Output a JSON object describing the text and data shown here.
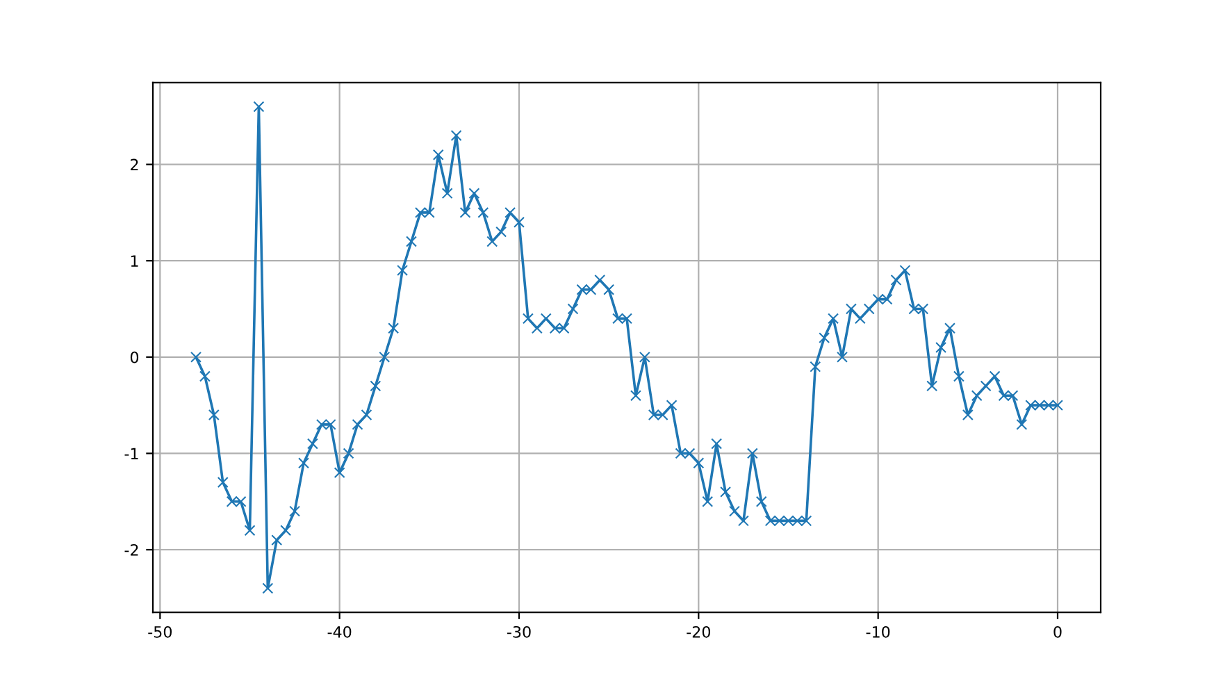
{
  "chart_data": {
    "type": "line",
    "color": "#1f77b4",
    "marker": "cross",
    "line_style": "solid",
    "grid": true,
    "x": [
      -48,
      -47.5,
      -47,
      -46.5,
      -46,
      -45.5,
      -45,
      -44.5,
      -44,
      -43.5,
      -43,
      -42.5,
      -42,
      -41.5,
      -41,
      -40.5,
      -40,
      -39.5,
      -39,
      -38.5,
      -38,
      -37.5,
      -37,
      -36.5,
      -36,
      -35.5,
      -35,
      -34.5,
      -34,
      -33.5,
      -33,
      -32.5,
      -32,
      -31.5,
      -31,
      -30.5,
      -30,
      -29.5,
      -29,
      -28.5,
      -28,
      -27.5,
      -27,
      -26.5,
      -26,
      -25.5,
      -25,
      -24.5,
      -24,
      -23.5,
      -23,
      -22.5,
      -22,
      -21.5,
      -21,
      -20.5,
      -20,
      -19.5,
      -19,
      -18.5,
      -18,
      -17.5,
      -17,
      -16.5,
      -16,
      -15.5,
      -15,
      -14.5,
      -14,
      -13.5,
      -13,
      -12.5,
      -12,
      -11.5,
      -11,
      -10.5,
      -10,
      -9.5,
      -9,
      -8.5,
      -8,
      -7.5,
      -7,
      -6.5,
      -6,
      -5.5,
      -5,
      -4.5,
      -4,
      -3.5,
      -3,
      -2.5,
      -2,
      -1.5,
      -1,
      -0.5,
      0
    ],
    "values": [
      0,
      -0.2,
      -0.6,
      -1.3,
      -1.5,
      -1.5,
      -1.8,
      2.6,
      -2.4,
      -1.9,
      -1.8,
      -1.6,
      -1.1,
      -0.9,
      -0.7,
      -0.7,
      -1.2,
      -1.0,
      -0.7,
      -0.6,
      -0.3,
      0,
      0.3,
      0.9,
      1.2,
      1.5,
      1.5,
      2.1,
      1.7,
      2.3,
      1.5,
      1.7,
      1.5,
      1.2,
      1.3,
      1.5,
      1.4,
      0.4,
      0.3,
      0.4,
      0.3,
      0.3,
      0.5,
      0.7,
      0.7,
      0.8,
      0.7,
      0.4,
      0.4,
      -0.4,
      0,
      -0.6,
      -0.6,
      -0.5,
      -1.0,
      -1.0,
      -1.1,
      -1.5,
      -0.9,
      -1.4,
      -1.6,
      -1.7,
      -1.0,
      -1.5,
      -1.7,
      -1.7,
      -1.7,
      -1.7,
      -1.7,
      -0.1,
      0.2,
      0.4,
      0,
      0.5,
      0.4,
      0.5,
      0.6,
      0.6,
      0.8,
      0.9,
      0.5,
      0.5,
      -0.3,
      0.1,
      0.3,
      -0.2,
      -0.6,
      -0.4,
      -0.3,
      -0.2,
      -0.4,
      -0.4,
      -0.7,
      -0.5,
      -0.5,
      -0.5,
      -0.5
    ],
    "xlim": [
      -50.4,
      2.4
    ],
    "ylim": [
      -2.65,
      2.85
    ],
    "xticks": [
      -50,
      -40,
      -30,
      -20,
      -10,
      0
    ],
    "yticks": [
      -2,
      -1,
      0,
      1,
      2
    ]
  }
}
